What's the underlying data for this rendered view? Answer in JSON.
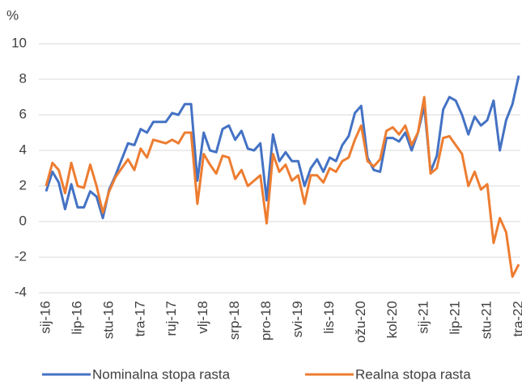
{
  "chart_data": {
    "type": "line",
    "y_unit": "%",
    "categories": [
      "sij-16",
      null,
      null,
      null,
      null,
      "lip-16",
      null,
      null,
      null,
      null,
      "stu-16",
      null,
      null,
      null,
      null,
      "tra-17",
      null,
      null,
      null,
      null,
      "ruj-17",
      null,
      null,
      null,
      null,
      "vlj-18",
      null,
      null,
      null,
      null,
      "srp-18",
      null,
      null,
      null,
      null,
      "pro-18",
      null,
      null,
      null,
      null,
      "svi-19",
      null,
      null,
      null,
      null,
      "lis-19",
      null,
      null,
      null,
      null,
      "ožu-20",
      null,
      null,
      null,
      null,
      "kol-20",
      null,
      null,
      null,
      null,
      "sij-21",
      null,
      null,
      null,
      null,
      "lip-21",
      null,
      null,
      null,
      null,
      "stu-21",
      null,
      null,
      null,
      null,
      "tra-22"
    ],
    "series": [
      {
        "name": "Nominalna stopa rasta",
        "color": "#4472c4",
        "values": [
          1.7,
          2.8,
          2.2,
          0.7,
          2.1,
          0.8,
          0.8,
          1.7,
          1.4,
          0.2,
          1.8,
          2.6,
          3.5,
          4.4,
          4.3,
          5.2,
          5.0,
          5.6,
          5.6,
          5.6,
          6.1,
          6.0,
          6.6,
          6.6,
          2.3,
          5.0,
          4.0,
          3.9,
          5.2,
          5.4,
          4.6,
          5.1,
          4.1,
          4.0,
          4.4,
          1.2,
          4.9,
          3.4,
          3.9,
          3.4,
          3.4,
          2.0,
          3.0,
          3.5,
          2.8,
          3.6,
          3.4,
          4.3,
          4.8,
          6.1,
          6.5,
          3.6,
          2.9,
          2.8,
          4.7,
          4.7,
          4.5,
          5.0,
          4.0,
          5.0,
          6.5,
          2.8,
          3.7,
          6.3,
          7.0,
          6.8,
          6.0,
          4.9,
          5.9,
          5.4,
          5.7,
          6.8,
          4.0,
          5.7,
          6.6,
          8.2
        ]
      },
      {
        "name": "Realna stopa rasta",
        "color": "#ed7d31",
        "values": [
          2.0,
          3.3,
          2.9,
          1.6,
          3.3,
          2.0,
          1.9,
          3.2,
          2.0,
          0.5,
          1.7,
          2.5,
          3.0,
          3.5,
          2.9,
          4.1,
          3.6,
          4.6,
          4.5,
          4.4,
          4.6,
          4.4,
          5.0,
          5.0,
          1.0,
          3.8,
          3.2,
          2.7,
          3.7,
          3.6,
          2.4,
          2.9,
          2.0,
          2.3,
          2.6,
          -0.1,
          3.8,
          2.8,
          3.2,
          2.3,
          2.6,
          1.0,
          2.6,
          2.6,
          2.2,
          3.0,
          2.8,
          3.4,
          3.6,
          4.6,
          5.4,
          3.4,
          3.1,
          3.5,
          5.1,
          5.3,
          4.9,
          5.4,
          4.3,
          5.0,
          7.0,
          2.7,
          3.0,
          4.7,
          4.8,
          4.3,
          3.8,
          2.0,
          2.8,
          1.8,
          2.1,
          -1.2,
          0.2,
          -0.6,
          -3.1,
          -2.4
        ]
      }
    ],
    "ylim": [
      -4,
      10
    ],
    "yticks": [
      -4,
      -2,
      0,
      2,
      4,
      6,
      8,
      10
    ],
    "grid": true,
    "legend": "bottom"
  }
}
